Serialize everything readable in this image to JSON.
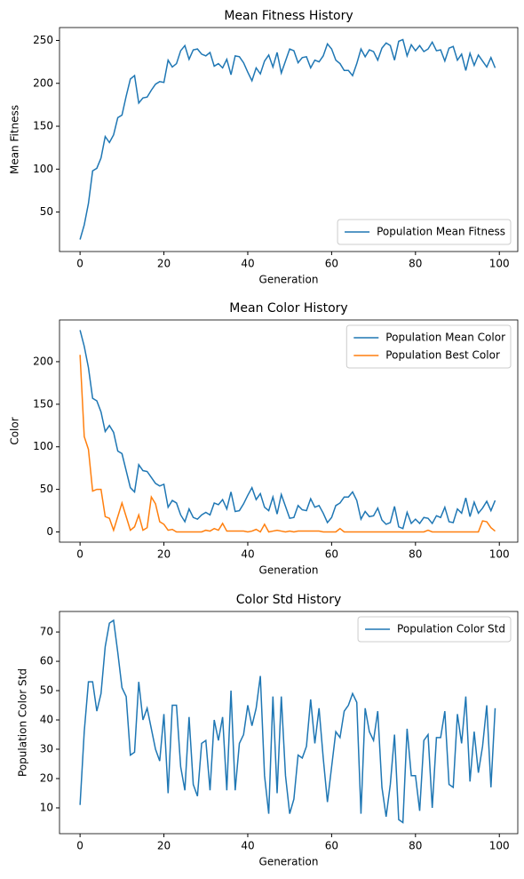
{
  "chart_data": [
    {
      "type": "line",
      "title": "Mean Fitness History",
      "x_label": "Generation",
      "y_label": "Mean Fitness",
      "x": [
        0,
        1,
        2,
        3,
        4,
        5,
        6,
        7,
        8,
        9,
        10,
        11,
        12,
        13,
        14,
        15,
        16,
        17,
        18,
        19,
        20,
        21,
        22,
        23,
        24,
        25,
        26,
        27,
        28,
        29,
        30,
        31,
        32,
        33,
        34,
        35,
        36,
        37,
        38,
        39,
        40,
        41,
        42,
        43,
        44,
        45,
        46,
        47,
        48,
        49,
        50,
        51,
        52,
        53,
        54,
        55,
        56,
        57,
        58,
        59,
        60,
        61,
        62,
        63,
        64,
        65,
        66,
        67,
        68,
        69,
        70,
        71,
        72,
        73,
        74,
        75,
        76,
        77,
        78,
        79,
        80,
        81,
        82,
        83,
        84,
        85,
        86,
        87,
        88,
        89,
        90,
        91,
        92,
        93,
        94,
        95,
        96,
        97,
        98,
        99
      ],
      "series": [
        {
          "name": "Population Mean Fitness",
          "color": "#1f77b4",
          "values": [
            18,
            35,
            60,
            98,
            101,
            113,
            138,
            131,
            140,
            160,
            163,
            185,
            205,
            209,
            177,
            183,
            184,
            192,
            199,
            202,
            201,
            227,
            219,
            223,
            238,
            244,
            228,
            239,
            240,
            234,
            232,
            236,
            220,
            223,
            218,
            228,
            210,
            232,
            231,
            224,
            213,
            203,
            218,
            211,
            226,
            233,
            219,
            236,
            212,
            226,
            240,
            238,
            224,
            230,
            231,
            218,
            227,
            225,
            232,
            246,
            240,
            227,
            223,
            215,
            215,
            209,
            223,
            240,
            231,
            239,
            237,
            227,
            241,
            247,
            244,
            227,
            249,
            251,
            232,
            245,
            238,
            244,
            237,
            240,
            248,
            238,
            239,
            226,
            241,
            243,
            227,
            234,
            215,
            235,
            221,
            233,
            226,
            219,
            230,
            218
          ]
        }
      ],
      "xlim": [
        -4.9,
        104.4
      ],
      "xticks": [
        0,
        20,
        40,
        60,
        80,
        100
      ],
      "ylim": [
        4,
        265
      ],
      "yticks": [
        50,
        100,
        150,
        200,
        250
      ],
      "legend": "lower right"
    },
    {
      "type": "line",
      "title": "Mean Color History",
      "x_label": "Generation",
      "y_label": "Color",
      "x": [
        0,
        1,
        2,
        3,
        4,
        5,
        6,
        7,
        8,
        9,
        10,
        11,
        12,
        13,
        14,
        15,
        16,
        17,
        18,
        19,
        20,
        21,
        22,
        23,
        24,
        25,
        26,
        27,
        28,
        29,
        30,
        31,
        32,
        33,
        34,
        35,
        36,
        37,
        38,
        39,
        40,
        41,
        42,
        43,
        44,
        45,
        46,
        47,
        48,
        49,
        50,
        51,
        52,
        53,
        54,
        55,
        56,
        57,
        58,
        59,
        60,
        61,
        62,
        63,
        64,
        65,
        66,
        67,
        68,
        69,
        70,
        71,
        72,
        73,
        74,
        75,
        76,
        77,
        78,
        79,
        80,
        81,
        82,
        83,
        84,
        85,
        86,
        87,
        88,
        89,
        90,
        91,
        92,
        93,
        94,
        95,
        96,
        97,
        98,
        99
      ],
      "series": [
        {
          "name": "Population Mean Color",
          "color": "#1f77b4",
          "values": [
            237,
            218,
            193,
            157,
            154,
            141,
            118,
            125,
            117,
            95,
            92,
            72,
            52,
            47,
            79,
            72,
            71,
            64,
            57,
            54,
            56,
            29,
            37,
            34,
            20,
            12,
            27,
            17,
            15,
            20,
            23,
            20,
            34,
            32,
            38,
            27,
            47,
            24,
            25,
            33,
            43,
            52,
            38,
            45,
            29,
            25,
            41,
            21,
            44,
            30,
            16,
            17,
            31,
            26,
            25,
            39,
            29,
            31,
            22,
            11,
            17,
            31,
            34,
            41,
            41,
            47,
            37,
            15,
            24,
            18,
            19,
            28,
            14,
            9,
            11,
            30,
            6,
            4,
            23,
            10,
            15,
            10,
            17,
            16,
            10,
            19,
            17,
            29,
            12,
            11,
            27,
            22,
            40,
            18,
            35,
            22,
            28,
            36,
            25,
            37
          ]
        },
        {
          "name": "Population Best Color",
          "color": "#ff7f0e",
          "values": [
            208,
            112,
            97,
            48,
            50,
            50,
            18,
            16,
            2,
            18,
            34,
            18,
            2,
            6,
            20,
            2,
            5,
            41,
            33,
            12,
            9,
            2,
            3,
            0,
            0,
            0,
            0,
            0,
            0,
            0,
            2,
            1,
            4,
            2,
            10,
            1,
            1,
            1,
            1,
            1,
            0,
            1,
            3,
            0,
            9,
            0,
            1,
            2,
            1,
            0,
            1,
            0,
            1,
            1,
            1,
            1,
            1,
            1,
            0,
            0,
            0,
            0,
            4,
            0,
            0,
            0,
            0,
            0,
            0,
            0,
            0,
            0,
            0,
            0,
            0,
            0,
            0,
            0,
            0,
            0,
            0,
            0,
            0,
            2,
            0,
            0,
            0,
            0,
            0,
            0,
            0,
            0,
            0,
            0,
            0,
            0,
            13,
            12,
            5,
            1
          ]
        }
      ],
      "xlim": [
        -4.9,
        104.4
      ],
      "xticks": [
        0,
        20,
        40,
        60,
        80,
        100
      ],
      "ylim": [
        -12,
        249
      ],
      "yticks": [
        0,
        50,
        100,
        150,
        200
      ],
      "legend": "upper right"
    },
    {
      "type": "line",
      "title": "Color Std History",
      "x_label": "Generation",
      "y_label": "Population Color Std",
      "x": [
        0,
        1,
        2,
        3,
        4,
        5,
        6,
        7,
        8,
        9,
        10,
        11,
        12,
        13,
        14,
        15,
        16,
        17,
        18,
        19,
        20,
        21,
        22,
        23,
        24,
        25,
        26,
        27,
        28,
        29,
        30,
        31,
        32,
        33,
        34,
        35,
        36,
        37,
        38,
        39,
        40,
        41,
        42,
        43,
        44,
        45,
        46,
        47,
        48,
        49,
        50,
        51,
        52,
        53,
        54,
        55,
        56,
        57,
        58,
        59,
        60,
        61,
        62,
        63,
        64,
        65,
        66,
        67,
        68,
        69,
        70,
        71,
        72,
        73,
        74,
        75,
        76,
        77,
        78,
        79,
        80,
        81,
        82,
        83,
        84,
        85,
        86,
        87,
        88,
        89,
        90,
        91,
        92,
        93,
        94,
        95,
        96,
        97,
        98,
        99
      ],
      "series": [
        {
          "name": "Population Color Std",
          "color": "#1f77b4",
          "values": [
            11,
            36,
            53,
            53,
            43,
            49,
            65,
            73,
            74,
            63,
            51,
            48,
            28,
            29,
            53,
            40,
            44,
            37,
            30,
            26,
            42,
            15,
            45,
            45,
            24,
            16,
            41,
            18,
            14,
            32,
            33,
            16,
            40,
            33,
            41,
            16,
            50,
            16,
            32,
            35,
            45,
            38,
            44,
            55,
            21,
            8,
            48,
            15,
            48,
            21,
            8,
            13,
            28,
            27,
            31,
            47,
            32,
            44,
            27,
            12,
            24,
            36,
            34,
            43,
            45,
            49,
            46,
            8,
            44,
            36,
            33,
            43,
            17,
            7,
            18,
            35,
            6,
            5,
            37,
            21,
            21,
            9,
            33,
            35,
            10,
            34,
            34,
            43,
            18,
            17,
            42,
            32,
            48,
            19,
            36,
            22,
            31,
            45,
            17,
            44
          ]
        }
      ],
      "xlim": [
        -4.9,
        104.4
      ],
      "xticks": [
        0,
        20,
        40,
        60,
        80,
        100
      ],
      "ylim": [
        1.2,
        77
      ],
      "yticks": [
        10,
        20,
        30,
        40,
        50,
        60,
        70
      ],
      "legend": "upper right"
    }
  ]
}
